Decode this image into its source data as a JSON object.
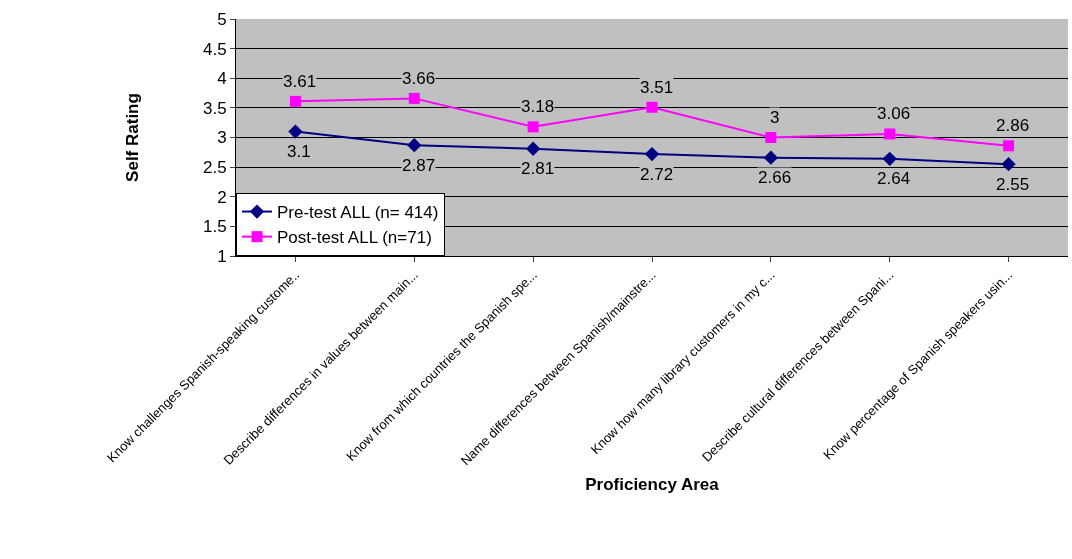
{
  "chart_data": {
    "type": "line",
    "xlabel": "Proficiency Area",
    "ylabel": "Self Rating",
    "categories": [
      "Know challenges Spanish-speaking custome..",
      "Describe differences in values between main...",
      "Know from which countries the Spanish spe...",
      "Name differences between Spanish/mainstre...",
      "Know how many library customers in my c...",
      "Describe cultural differences between Spani...",
      "Know percentage of Spanish speakers usin..."
    ],
    "series": [
      {
        "name": "Pre-test ALL (n= 414)",
        "color": "#000080",
        "marker": "diamond",
        "values": [
          3.1,
          2.87,
          2.81,
          2.72,
          2.66,
          2.64,
          2.55
        ]
      },
      {
        "name": "Post-test ALL (n=71)",
        "color": "#ff00ff",
        "marker": "square",
        "values": [
          3.61,
          3.66,
          3.18,
          3.51,
          3,
          3.06,
          2.86
        ]
      }
    ],
    "ylim": [
      1,
      5
    ],
    "yticks": [
      1,
      1.5,
      2,
      2.5,
      3,
      3.5,
      4,
      4.5,
      5
    ],
    "grid": "y",
    "legend": "bottom left",
    "data_labels": true,
    "line_style": "solid"
  }
}
